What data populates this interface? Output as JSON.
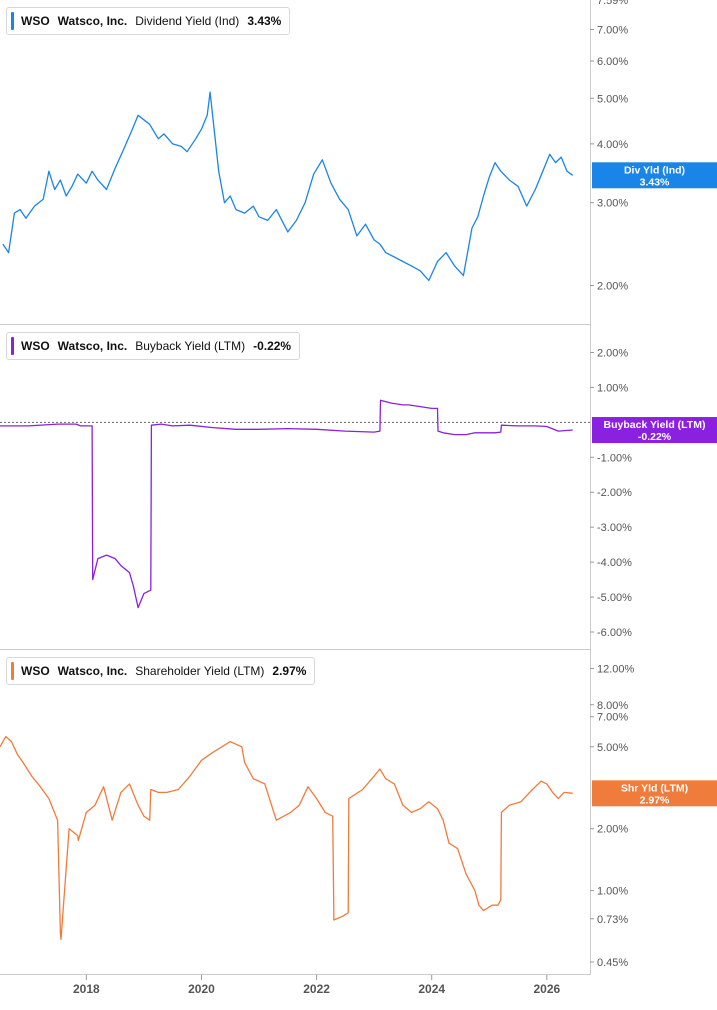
{
  "colors": {
    "dividend": "#1a85e8",
    "buyback": "#8a20e0",
    "shareholder": "#f07c3c",
    "axis_text": "#555555",
    "grid_line": "#cccccc",
    "zero_line": "#666666"
  },
  "x_axis": {
    "ticks": [
      "2018",
      "2020",
      "2022",
      "2024",
      "2026"
    ],
    "range": [
      2016.5,
      2026.75
    ]
  },
  "chart_data": [
    {
      "type": "line",
      "panel": "dividend",
      "ticker": "WSO",
      "company": "Watsco, Inc.",
      "metric": "Dividend Yield (Ind)",
      "current": "3.43%",
      "tag": [
        "Div Yld (Ind)",
        "3.43%"
      ],
      "scale": "log",
      "ylim": [
        1.74,
        7.7
      ],
      "yticks": [
        "7.00%",
        "6.00%",
        "5.00%",
        "4.00%",
        "3.00%",
        "2.00%"
      ],
      "ytick_values": [
        7,
        6,
        5,
        4,
        3,
        2
      ],
      "top_partial_label": "7.59%",
      "x": [
        2016.55,
        2016.65,
        2016.75,
        2016.85,
        2016.95,
        2017.1,
        2017.25,
        2017.35,
        2017.45,
        2017.55,
        2017.65,
        2017.75,
        2017.85,
        2018.0,
        2018.1,
        2018.2,
        2018.35,
        2018.5,
        2018.65,
        2018.8,
        2018.9,
        2019.0,
        2019.1,
        2019.25,
        2019.35,
        2019.5,
        2019.65,
        2019.75,
        2019.9,
        2020.0,
        2020.1,
        2020.15,
        2020.22,
        2020.3,
        2020.4,
        2020.5,
        2020.6,
        2020.75,
        2020.9,
        2021.0,
        2021.15,
        2021.3,
        2021.5,
        2021.65,
        2021.8,
        2021.95,
        2022.1,
        2022.25,
        2022.4,
        2022.55,
        2022.7,
        2022.85,
        2023.0,
        2023.1,
        2023.2,
        2023.35,
        2023.5,
        2023.65,
        2023.8,
        2023.95,
        2024.1,
        2024.25,
        2024.4,
        2024.55,
        2024.7,
        2024.8,
        2024.9,
        2025.0,
        2025.1,
        2025.2,
        2025.35,
        2025.5,
        2025.65,
        2025.8,
        2025.95,
        2026.05,
        2026.15,
        2026.25,
        2026.35,
        2026.45
      ],
      "y": [
        2.45,
        2.35,
        2.85,
        2.9,
        2.78,
        2.95,
        3.05,
        3.5,
        3.2,
        3.35,
        3.1,
        3.25,
        3.45,
        3.3,
        3.5,
        3.35,
        3.2,
        3.55,
        3.9,
        4.3,
        4.6,
        4.5,
        4.4,
        4.1,
        4.2,
        4.0,
        3.95,
        3.85,
        4.1,
        4.3,
        4.6,
        5.15,
        4.3,
        3.5,
        3.0,
        3.1,
        2.9,
        2.85,
        2.95,
        2.8,
        2.75,
        2.9,
        2.6,
        2.75,
        3.0,
        3.45,
        3.7,
        3.3,
        3.05,
        2.9,
        2.55,
        2.7,
        2.5,
        2.45,
        2.35,
        2.3,
        2.25,
        2.2,
        2.15,
        2.05,
        2.25,
        2.35,
        2.2,
        2.1,
        2.65,
        2.8,
        3.1,
        3.4,
        3.65,
        3.5,
        3.35,
        3.25,
        2.95,
        3.2,
        3.55,
        3.8,
        3.65,
        3.75,
        3.5,
        3.43
      ]
    },
    {
      "type": "line",
      "panel": "buyback",
      "ticker": "WSO",
      "company": "Watsco, Inc.",
      "metric": "Buyback Yield (LTM)",
      "current": "-0.22%",
      "tag": [
        "Buyback Yield (LTM)",
        "-0.22%"
      ],
      "scale": "linear",
      "ylim": [
        -6.2,
        2.5
      ],
      "yticks": [
        "2.00%",
        "1.00%",
        "-1.00%",
        "-2.00%",
        "-3.00%",
        "-4.00%",
        "-5.00%",
        "-6.00%"
      ],
      "ytick_values": [
        2,
        1,
        -1,
        -2,
        -3,
        -4,
        -5,
        -6
      ],
      "x": [
        2016.5,
        2017.0,
        2017.5,
        2017.82,
        2017.9,
        2018.1,
        2018.11,
        2018.2,
        2018.35,
        2018.5,
        2018.6,
        2018.75,
        2018.82,
        2018.9,
        2019.0,
        2019.12,
        2019.13,
        2019.3,
        2019.5,
        2019.8,
        2020.2,
        2020.6,
        2021.0,
        2021.5,
        2022.0,
        2022.5,
        2023.0,
        2023.1,
        2023.11,
        2023.3,
        2023.5,
        2023.6,
        2023.8,
        2024.0,
        2024.1,
        2024.11,
        2024.2,
        2024.4,
        2024.6,
        2024.75,
        2024.85,
        2025.0,
        2025.1,
        2025.2,
        2025.21,
        2025.5,
        2025.8,
        2026.0,
        2026.2,
        2026.45
      ],
      "y": [
        -0.1,
        -0.1,
        -0.05,
        -0.05,
        -0.1,
        -0.1,
        -4.5,
        -3.9,
        -3.8,
        -3.9,
        -4.1,
        -4.3,
        -4.7,
        -5.3,
        -4.9,
        -4.8,
        -0.08,
        -0.05,
        -0.1,
        -0.08,
        -0.15,
        -0.2,
        -0.2,
        -0.18,
        -0.2,
        -0.25,
        -0.28,
        -0.25,
        0.63,
        0.55,
        0.5,
        0.5,
        0.45,
        0.4,
        0.4,
        -0.25,
        -0.3,
        -0.35,
        -0.35,
        -0.3,
        -0.3,
        -0.3,
        -0.3,
        -0.28,
        -0.08,
        -0.1,
        -0.1,
        -0.12,
        -0.25,
        -0.22
      ]
    },
    {
      "type": "line",
      "panel": "shareholder",
      "ticker": "WSO",
      "company": "Watsco, Inc.",
      "metric": "Shareholder Yield (LTM)",
      "current": "2.97%",
      "tag": [
        "Shr Yld (LTM)",
        "2.97%"
      ],
      "scale": "log",
      "ylim": [
        0.45,
        13.2
      ],
      "yticks": [
        "12.00%",
        "8.00%",
        "7.00%",
        "5.00%",
        "2.00%",
        "1.00%",
        "0.73%",
        "0.45%"
      ],
      "ytick_values": [
        12,
        8,
        7,
        5,
        2,
        1,
        0.73,
        0.45
      ],
      "x": [
        2016.5,
        2016.6,
        2016.7,
        2016.8,
        2016.9,
        2017.05,
        2017.2,
        2017.35,
        2017.5,
        2017.55,
        2017.56,
        2017.7,
        2017.85,
        2017.86,
        2018.0,
        2018.15,
        2018.3,
        2018.45,
        2018.6,
        2018.75,
        2018.9,
        2019.0,
        2019.1,
        2019.12,
        2019.25,
        2019.4,
        2019.6,
        2019.8,
        2020.0,
        2020.2,
        2020.5,
        2020.7,
        2020.75,
        2020.9,
        2021.1,
        2021.3,
        2021.55,
        2021.7,
        2021.85,
        2022.0,
        2022.15,
        2022.28,
        2022.3,
        2022.45,
        2022.55,
        2022.56,
        2022.8,
        2023.0,
        2023.1,
        2023.2,
        2023.35,
        2023.5,
        2023.65,
        2023.8,
        2023.95,
        2024.1,
        2024.2,
        2024.3,
        2024.45,
        2024.6,
        2024.75,
        2024.82,
        2024.9,
        2025.05,
        2025.15,
        2025.2,
        2025.21,
        2025.35,
        2025.55,
        2025.75,
        2025.9,
        2026.0,
        2026.1,
        2026.2,
        2026.3,
        2026.45
      ],
      "y": [
        5.0,
        5.6,
        5.3,
        4.6,
        4.2,
        3.6,
        3.2,
        2.8,
        2.2,
        0.62,
        0.58,
        2.0,
        1.85,
        1.75,
        2.4,
        2.6,
        3.2,
        2.2,
        3.0,
        3.3,
        2.6,
        2.3,
        2.2,
        3.1,
        3.0,
        3.0,
        3.1,
        3.6,
        4.3,
        4.7,
        5.3,
        5.0,
        4.2,
        3.5,
        3.3,
        2.2,
        2.4,
        2.6,
        3.2,
        2.8,
        2.4,
        2.3,
        0.72,
        0.75,
        0.78,
        2.8,
        3.1,
        3.6,
        3.9,
        3.5,
        3.3,
        2.6,
        2.4,
        2.5,
        2.7,
        2.5,
        2.2,
        1.7,
        1.6,
        1.2,
        1.0,
        0.85,
        0.8,
        0.85,
        0.85,
        0.9,
        2.4,
        2.6,
        2.7,
        3.1,
        3.4,
        3.3,
        3.0,
        2.8,
        3.0,
        2.97
      ]
    }
  ]
}
